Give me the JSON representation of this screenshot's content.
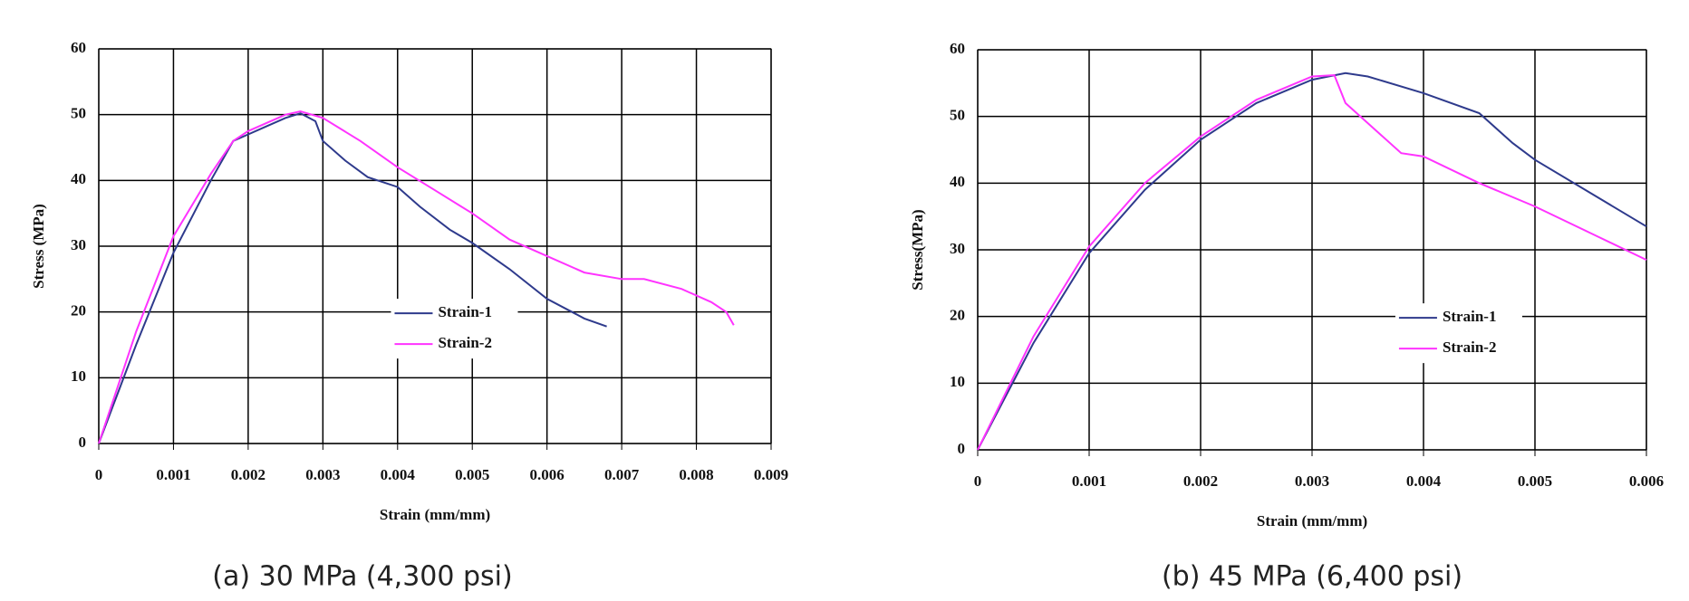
{
  "chart_data": [
    {
      "type": "line",
      "caption": "(a) 30 MPa (4,300 psi)",
      "x_label": "Strain (mm/mm)",
      "y_label": "Stress (MPa)",
      "xlim": [
        0,
        0.009
      ],
      "xticks": [
        0,
        0.001,
        0.002,
        0.003,
        0.004,
        0.005,
        0.006,
        0.007,
        0.008,
        0.009
      ],
      "ylim": [
        0,
        60
      ],
      "yticks": [
        0,
        10,
        20,
        30,
        40,
        50,
        60
      ],
      "grid": true,
      "legend": "center",
      "series": [
        {
          "name": "Strain-1",
          "color": "#2e3a8c",
          "x": [
            0,
            0.0005,
            0.001,
            0.0015,
            0.0018,
            0.002,
            0.0022,
            0.0025,
            0.0027,
            0.0029,
            0.003,
            0.0033,
            0.0036,
            0.004,
            0.0043,
            0.0047,
            0.005,
            0.0055,
            0.006,
            0.0065,
            0.0068
          ],
          "values": [
            0,
            15,
            29,
            40,
            46,
            47,
            48,
            49.5,
            50.2,
            49,
            46,
            43,
            40.5,
            39,
            36,
            32.5,
            30.5,
            26.5,
            22,
            19,
            17.8
          ]
        },
        {
          "name": "Strain-2",
          "color": "#ff33ff",
          "x": [
            0,
            0.0005,
            0.001,
            0.0015,
            0.0018,
            0.002,
            0.0025,
            0.0027,
            0.003,
            0.0035,
            0.004,
            0.0045,
            0.005,
            0.0055,
            0.006,
            0.0065,
            0.007,
            0.0073,
            0.0078,
            0.0082,
            0.0084,
            0.0085
          ],
          "values": [
            0,
            17,
            31.5,
            41,
            46,
            47.5,
            50,
            50.5,
            49.5,
            46,
            42,
            38.5,
            35,
            31,
            28.5,
            26,
            25,
            25,
            23.5,
            21.5,
            20,
            18
          ]
        }
      ]
    },
    {
      "type": "line",
      "caption": "(b) 45 MPa (6,400 psi)",
      "x_label": "Strain (mm/mm)",
      "y_label": "Stress(MPa)",
      "xlim": [
        0,
        0.006
      ],
      "xticks": [
        0,
        0.001,
        0.002,
        0.003,
        0.004,
        0.005,
        0.006
      ],
      "ylim": [
        0,
        60
      ],
      "yticks": [
        0,
        10,
        20,
        30,
        40,
        50,
        60
      ],
      "grid": true,
      "legend": "right",
      "series": [
        {
          "name": "Strain-1",
          "color": "#2e3a8c",
          "x": [
            0,
            0.0005,
            0.001,
            0.0015,
            0.002,
            0.0025,
            0.003,
            0.0033,
            0.0035,
            0.004,
            0.0045,
            0.0048,
            0.005,
            0.0055,
            0.006
          ],
          "values": [
            0,
            16,
            29.5,
            39,
            46.5,
            52,
            55.5,
            56.5,
            56,
            53.5,
            50.5,
            46,
            43.5,
            38.5,
            33.5
          ]
        },
        {
          "name": "Strain-2",
          "color": "#ff33ff",
          "x": [
            0,
            0.0005,
            0.001,
            0.0015,
            0.002,
            0.0025,
            0.003,
            0.0032,
            0.0033,
            0.0036,
            0.0038,
            0.004,
            0.0045,
            0.005,
            0.0055,
            0.006
          ],
          "values": [
            0,
            17,
            30.5,
            40,
            47,
            52.5,
            56,
            56.2,
            52,
            47.5,
            44.5,
            44,
            40,
            36.5,
            32.5,
            28.5
          ]
        }
      ]
    }
  ]
}
